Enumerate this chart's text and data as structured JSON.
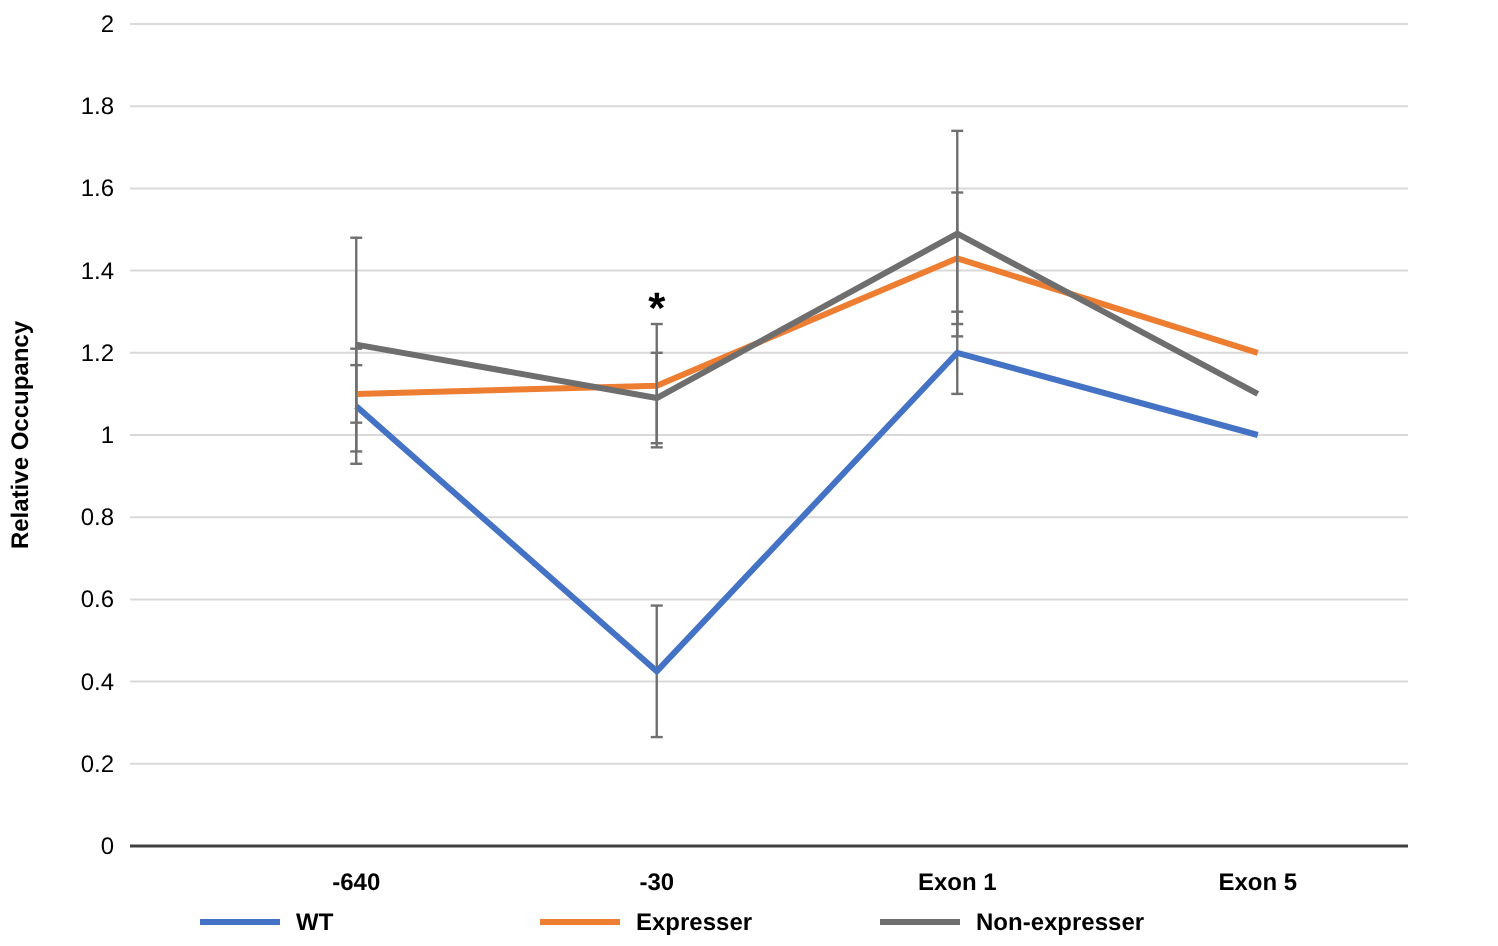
{
  "chart_data": {
    "type": "line",
    "ylabel": "Relative Occupancy",
    "categories": [
      "‑640",
      "‑30",
      "Exon 1",
      "Exon 5"
    ],
    "series": [
      {
        "name": "WT",
        "color": "#4472c4",
        "values": [
          1.07,
          0.425,
          1.2,
          1.0
        ],
        "errors": [
          0.14,
          0.16,
          0.1,
          null
        ]
      },
      {
        "name": "Expresser",
        "color": "#ed7d31",
        "values": [
          1.1,
          1.12,
          1.43,
          1.2
        ],
        "errors": [
          0.07,
          0.15,
          0.16,
          null
        ]
      },
      {
        "name": "Non-expresser",
        "color": "#6e6e6e",
        "values": [
          1.22,
          1.09,
          1.49,
          1.1
        ],
        "errors": [
          0.26,
          0.11,
          0.25,
          null
        ]
      }
    ],
    "ylim": [
      0,
      2
    ],
    "yticks": [
      0,
      {
        "value": 0.2,
        "label": "0.2"
      },
      {
        "value": 0.4,
        "label": "0.4"
      },
      {
        "value": 0.6,
        "label": "0.6"
      },
      {
        "value": 0.8,
        "label": "0.8"
      },
      1,
      {
        "value": 1.2,
        "label": "1.2"
      },
      {
        "value": 1.4,
        "label": "1.4"
      },
      {
        "value": 1.6,
        "label": "1.6"
      },
      {
        "value": 1.8,
        "label": "1.8"
      },
      2
    ],
    "grid": "y",
    "legend": "bottom",
    "marker": "none",
    "line_style": "solid",
    "annotations": [
      "*"
    ]
  }
}
